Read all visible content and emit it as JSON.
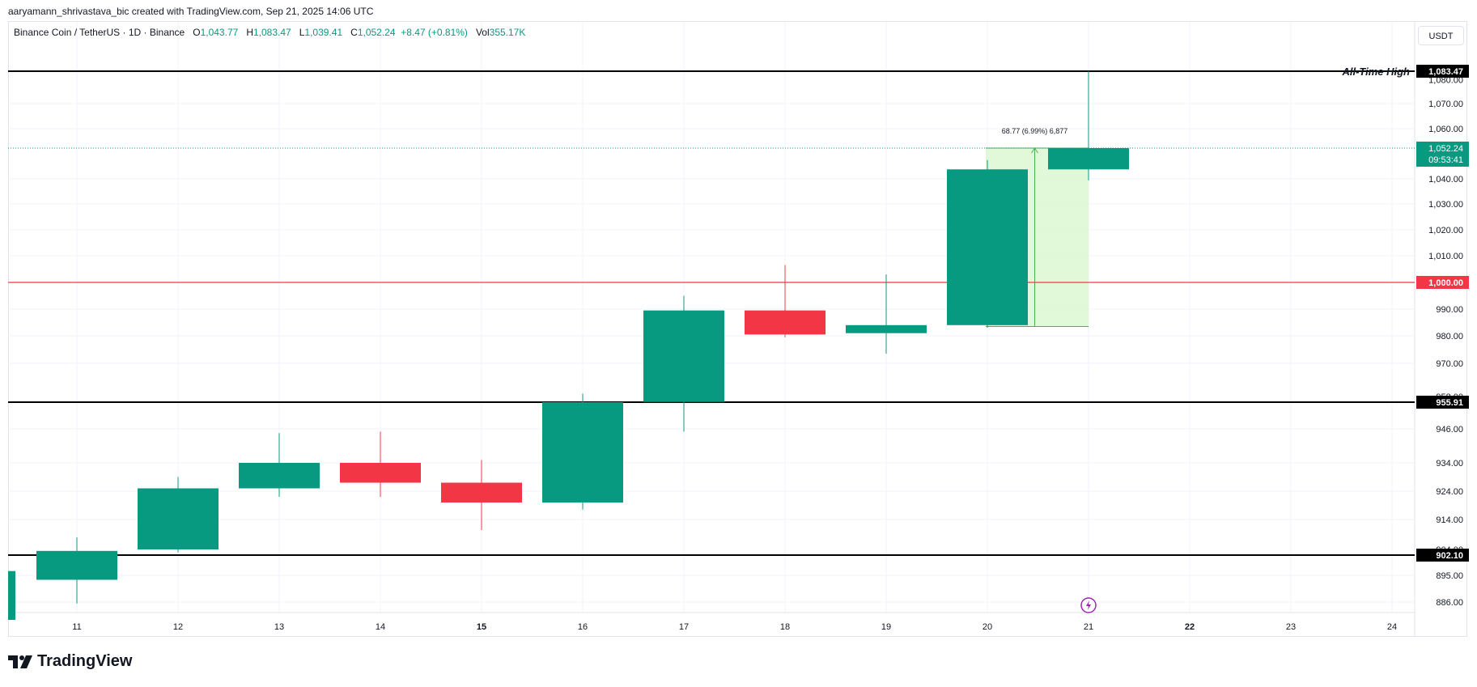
{
  "header": {
    "attribution": "aaryamann_shrivastava_bic created with TradingView.com, Sep 21, 2025 14:06 UTC"
  },
  "legend": {
    "symbol": "Binance Coin / TetherUS · 1D · Binance",
    "o_label": "O",
    "o_value": "1,043.77",
    "h_label": "H",
    "h_value": "1,083.47",
    "l_label": "L",
    "l_value": "1,039.41",
    "c_label": "C",
    "c_value": "1,052.24",
    "change": "+8.47 (+0.81%)",
    "vol_label": "Vol",
    "vol_value": "355.17K"
  },
  "currency": "USDT",
  "brand": {
    "name": "TradingView"
  },
  "colors": {
    "up": "#089981",
    "down": "#f23645",
    "ath_line": "#000000",
    "round_line": "#f23645",
    "measure_fill": "#d9f7d0",
    "measure_border": "#4caf50",
    "last_price_bg": "#089981"
  },
  "chart_data": {
    "type": "candlestick",
    "symbol": "Binance Coin / TetherUS",
    "interval": "1D",
    "exchange": "Binance",
    "x_ticks": [
      "11",
      "12",
      "13",
      "14",
      "15",
      "16",
      "17",
      "18",
      "19",
      "20",
      "21",
      "22",
      "23",
      "24"
    ],
    "bold_ticks": [
      "15",
      "22"
    ],
    "candles": [
      {
        "day": 11,
        "open": 893.5,
        "high": 908.0,
        "low": 885.5,
        "close": 903.5
      },
      {
        "day": 12,
        "open": 904.0,
        "high": 929.0,
        "low": 903.0,
        "close": 925.0
      },
      {
        "day": 13,
        "open": 925.0,
        "high": 944.5,
        "low": 922.0,
        "close": 934.0
      },
      {
        "day": 14,
        "open": 934.0,
        "high": 945.0,
        "low": 922.0,
        "close": 927.0
      },
      {
        "day": 15,
        "open": 927.0,
        "high": 935.0,
        "low": 910.5,
        "close": 920.0
      },
      {
        "day": 16,
        "open": 920.0,
        "high": 959.0,
        "low": 917.5,
        "close": 955.91
      },
      {
        "day": 17,
        "open": 956.0,
        "high": 995.0,
        "low": 945.0,
        "close": 989.5
      },
      {
        "day": 18,
        "open": 989.5,
        "high": 1006.5,
        "low": 979.5,
        "close": 980.5
      },
      {
        "day": 19,
        "open": 981.0,
        "high": 1003.0,
        "low": 973.5,
        "close": 984.0
      },
      {
        "day": 20,
        "open": 984.0,
        "high": 1047.5,
        "low": 983.0,
        "close": 1043.77
      },
      {
        "day": 21,
        "open": 1043.77,
        "high": 1083.47,
        "low": 1039.41,
        "close": 1052.24
      }
    ],
    "y_ticks": [
      "1,070.00",
      "1,060.00",
      "1,040.00",
      "1,030.00",
      "1,020.00",
      "1,010.00",
      "990.00",
      "980.00",
      "970.00",
      "946.00",
      "934.00",
      "924.00",
      "914.00",
      "895.00",
      "886.00"
    ],
    "partial_ticks": [
      "1,080.00",
      "958.00",
      "904.00"
    ],
    "horizontal_lines": [
      {
        "value": 1083.47,
        "label": "1,083.47",
        "annotation": "All-Time High",
        "kind": "ath"
      },
      {
        "value": 1000.0,
        "label": "1,000.00",
        "kind": "round"
      },
      {
        "value": 955.91,
        "label": "955.91",
        "kind": "support"
      },
      {
        "value": 902.1,
        "label": "902.10",
        "kind": "support"
      }
    ],
    "last_price": {
      "value": 1052.24,
      "label": "1,052.24",
      "countdown": "09:53:41"
    },
    "measure": {
      "from_day": 20,
      "to_day": 21,
      "from_value": 983.5,
      "to_value": 1052.24,
      "label": "68.77 (6.99%) 6,877"
    }
  }
}
